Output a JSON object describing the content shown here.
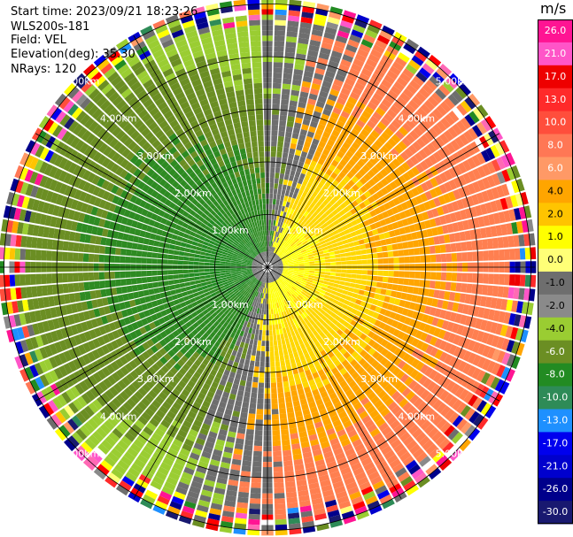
{
  "header": {
    "start_time": "Start time: 2023/09/21 18:23:26",
    "instrument": "WLS200s-181",
    "field": "Field: VEL",
    "elevation": "Elevation(deg): 35.30",
    "nrays": "NRays: 120"
  },
  "colorbar": {
    "title": "m/s",
    "ticks": [
      "26.0",
      "21.0",
      "17.0",
      "13.0",
      "10.0",
      "8.0",
      "6.0",
      "4.0",
      "2.0",
      "1.0",
      "0.0",
      "-1.0",
      "-2.0",
      "-4.0",
      "-6.0",
      "-8.0",
      "-10.0",
      "-13.0",
      "-17.0",
      "-21.0",
      "-26.0",
      "-30.0"
    ],
    "colors": [
      "#ff1493",
      "#ff55c8",
      "#ee0000",
      "#ff2a2a",
      "#ff4e3c",
      "#ff7755",
      "#ff9966",
      "#ffa500",
      "#ffc400",
      "#ffff00",
      "#ffff77",
      "#6e6e6e",
      "#8a8a8a",
      "#9acd32",
      "#6b8e23",
      "#228b22",
      "#2e8b57",
      "#1e90ff",
      "#0000ee",
      "#0000cd",
      "#00008b",
      "#191970"
    ]
  },
  "chart_data": {
    "type": "heatmap",
    "projection": "polar-ppi",
    "field": "VEL",
    "units": "m/s",
    "n_rays": 120,
    "range_rings_km": [
      1,
      2,
      3,
      4,
      5
    ],
    "ring_labels": [
      "1.00km",
      "2.00km",
      "3.00km",
      "4.00km",
      "5.00km"
    ],
    "azimuth_lines_deg": [
      0,
      30,
      60,
      90,
      120,
      150
    ],
    "valid_range_km": 4.8,
    "pattern": {
      "positive_sector_center_deg": 100,
      "positive_color_order_by_range": [
        "yellow",
        "gold",
        "orange",
        "coral"
      ],
      "negative_sector_center_deg": 280,
      "negative_color_order_by_range": [
        "darkgreen",
        "forestgreen",
        "olivedrab",
        "yellowgreen"
      ],
      "noise_beyond_km": 4.8
    }
  }
}
